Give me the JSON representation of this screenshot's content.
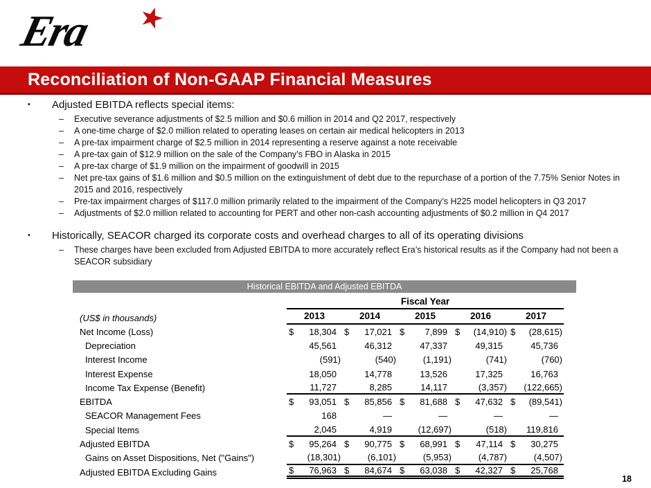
{
  "colors": {
    "accent_red": "#c50d0d",
    "accent_red_dark": "#8e0b0b",
    "table_header_gray": "#8a8a8a"
  },
  "logo": {
    "text": "Era",
    "star": "★"
  },
  "title_bar": {
    "text": "Reconciliation of Non-GAAP Financial Measures"
  },
  "bullets": [
    {
      "text": "Adjusted EBITDA reflects special items:",
      "subs": [
        "Executive severance adjustments of $2.5 million and $0.6 million in 2014 and Q2 2017, respectively",
        "A one-time charge of $2.0 million related to operating leases on certain air medical helicopters in 2013",
        "A pre-tax impairment charge of $2.5 million in 2014 representing a reserve against a note receivable",
        "A pre-tax gain of $12.9 million on the sale of the Company’s FBO in Alaska in 2015",
        "A pre-tax charge of $1.9 million on the impairment of goodwill in 2015",
        "Net pre-tax gains of $1.6 million and $0.5 million on the extinguishment of debt due to the repurchase of a portion of the 7.75% Senior Notes in 2015 and 2016, respectively",
        "Pre-tax impairment charges of $117.0 million primarily related to the impairment of the Company’s H225 model helicopters in Q3 2017",
        "Adjustments of $2.0 million related to accounting for PERT and other non-cash accounting adjustments of $0.2 million in Q4 2017"
      ]
    },
    {
      "text": "Historically, SEACOR charged its corporate costs and overhead charges to all of its operating divisions",
      "subs": [
        "These charges have been excluded from Adjusted EBITDA to more accurately reflect Era’s historical results as if the Company had not been a SEACOR subsidiary"
      ]
    }
  ],
  "table": {
    "header": "Historical EBITDA and Adjusted EBITDA",
    "group_header": "Fiscal Year",
    "unit_label": "(US$ in thousands)",
    "years": [
      "2013",
      "2014",
      "2015",
      "2016",
      "2017"
    ],
    "rows": [
      {
        "label": "Net Income (Loss)",
        "indent": false,
        "dollar": true,
        "values": [
          "18,304",
          "17,021",
          "7,899",
          "(14,910)",
          "(28,615)"
        ],
        "rule": ""
      },
      {
        "label": "Depreciation",
        "indent": true,
        "dollar": false,
        "values": [
          "45,561",
          "46,312",
          "47,337",
          "49,315",
          "45,736"
        ],
        "rule": ""
      },
      {
        "label": "Interest Income",
        "indent": true,
        "dollar": false,
        "values": [
          "(591)",
          "(540)",
          "(1,191)",
          "(741)",
          "(760)"
        ],
        "rule": ""
      },
      {
        "label": "Interest Expense",
        "indent": true,
        "dollar": false,
        "values": [
          "18,050",
          "14,778",
          "13,526",
          "17,325",
          "16,763"
        ],
        "rule": ""
      },
      {
        "label": "Income Tax Expense (Benefit)",
        "indent": true,
        "dollar": false,
        "values": [
          "11,727",
          "8,285",
          "14,117",
          "(3,357)",
          "(122,665)"
        ],
        "rule": "single"
      },
      {
        "label": "EBITDA",
        "indent": false,
        "dollar": true,
        "values": [
          "93,051",
          "85,856",
          "81,688",
          "47,632",
          "(89,541)"
        ],
        "rule": ""
      },
      {
        "label": "SEACOR Management Fees",
        "indent": true,
        "dollar": false,
        "values": [
          "168",
          "—",
          "—",
          "—",
          "—"
        ],
        "rule": ""
      },
      {
        "label": "Special Items",
        "indent": true,
        "dollar": false,
        "values": [
          "2,045",
          "4,919",
          "(12,697)",
          "(518)",
          "119,816"
        ],
        "rule": "single"
      },
      {
        "label": "Adjusted EBITDA",
        "indent": false,
        "dollar": true,
        "values": [
          "95,264",
          "90,775",
          "68,991",
          "47,114",
          "30,275"
        ],
        "rule": ""
      },
      {
        "label": "Gains on Asset Dispositions, Net (\"Gains\")",
        "indent": true,
        "dollar": false,
        "values": [
          "(18,301)",
          "(6,101)",
          "(5,953)",
          "(4,787)",
          "(4,507)"
        ],
        "rule": "single"
      },
      {
        "label": "Adjusted EBITDA Excluding Gains",
        "indent": false,
        "dollar": true,
        "values": [
          "76,963",
          "84,674",
          "63,038",
          "42,327",
          "25,768"
        ],
        "rule": "double"
      }
    ]
  },
  "page_number": "18"
}
